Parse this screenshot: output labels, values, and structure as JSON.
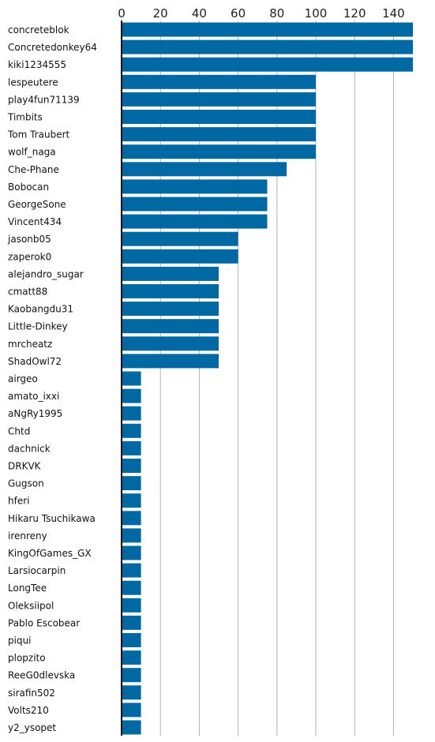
{
  "chart_data": {
    "type": "bar",
    "orientation": "horizontal",
    "title": "",
    "xlabel": "",
    "ylabel": "",
    "xlim": [
      0,
      150
    ],
    "xticks": [
      0,
      20,
      40,
      60,
      80,
      100,
      120,
      140
    ],
    "x_axis_position": "top",
    "grid": "vertical",
    "legend": "none",
    "bar_color": "#0069a4",
    "grid_color": "#b0b0b0",
    "categories": [
      "concreteblok",
      "Concretedonkey64",
      "kiki1234555",
      "lespeutere",
      "play4fun71139",
      "Timbits",
      "Tom Traubert",
      "wolf_naga",
      "Che-Phane",
      "Bobocan",
      "GeorgeSone",
      "Vincent434",
      "jasonb05",
      "zaperok0",
      "alejandro_sugar",
      "cmatt88",
      "Kaobangdu31",
      "Little-Dinkey",
      "mrcheatz",
      "ShadOwl72",
      "airgeo",
      "amato_ixxi",
      "aNgRy1995",
      "Chtd",
      "dachnick",
      "DRKVK",
      "Gugson",
      "hferi",
      "Hikaru Tsuchikawa",
      "irenreny",
      "KingOfGames_GX",
      "Larsiocarpin",
      "LongTee",
      "Oleksiipol",
      "Pablo Escobear",
      "piqui",
      "plopzito",
      "ReeG0dlevska",
      "sirafin502",
      "Volts210",
      "y2_ysopet"
    ],
    "values": [
      150,
      150,
      150,
      100,
      100,
      100,
      100,
      100,
      85,
      75,
      75,
      75,
      60,
      60,
      50,
      50,
      50,
      50,
      50,
      50,
      10,
      10,
      10,
      10,
      10,
      10,
      10,
      10,
      10,
      10,
      10,
      10,
      10,
      10,
      10,
      10,
      10,
      10,
      10,
      10,
      10
    ]
  }
}
